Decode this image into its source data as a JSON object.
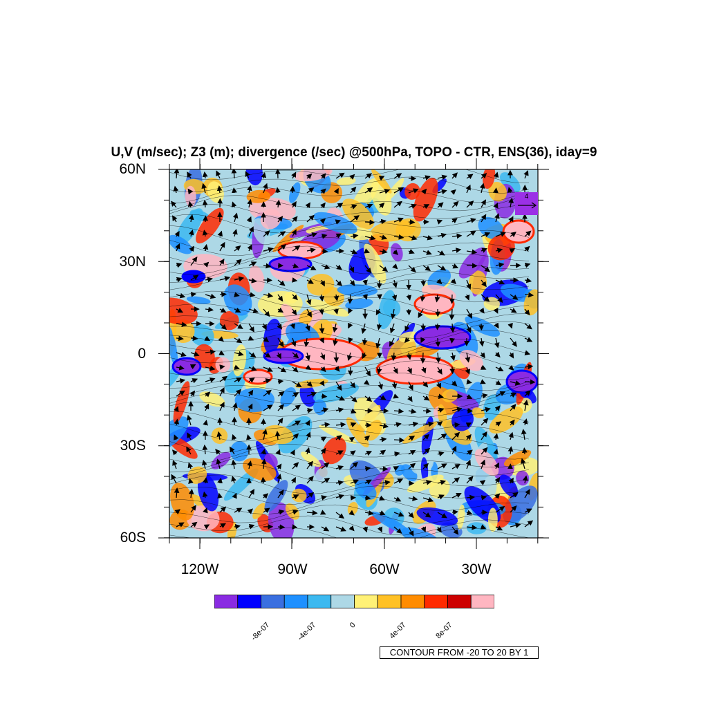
{
  "title": "U,V (m/sec); Z3 (m); divergence (/sec) @500hPa, TOPO - CTR, ENS(36), iday=9",
  "y_labels": [
    "60N",
    "30N",
    "0",
    "30S",
    "60S"
  ],
  "x_labels": [
    "120W",
    "90W",
    "60W",
    "30W"
  ],
  "colorbar": {
    "colors": [
      "#8a2be2",
      "#0000ff",
      "#3a6fe0",
      "#1e90ff",
      "#3cb9f0",
      "#add8e6",
      "#fff176",
      "#ffc125",
      "#ff8c00",
      "#ff2a00",
      "#cd0000",
      "#ffb6c1"
    ],
    "labels": [
      "-8e-07",
      "-4e-07",
      "0",
      "4e-07",
      "8e-07"
    ]
  },
  "reference_vector": {
    "label": "4"
  },
  "contour_info": "CONTOUR FROM -20 TO 20 BY 1",
  "colors": {
    "background_field": "#add8e6",
    "frame": "#000000"
  }
}
